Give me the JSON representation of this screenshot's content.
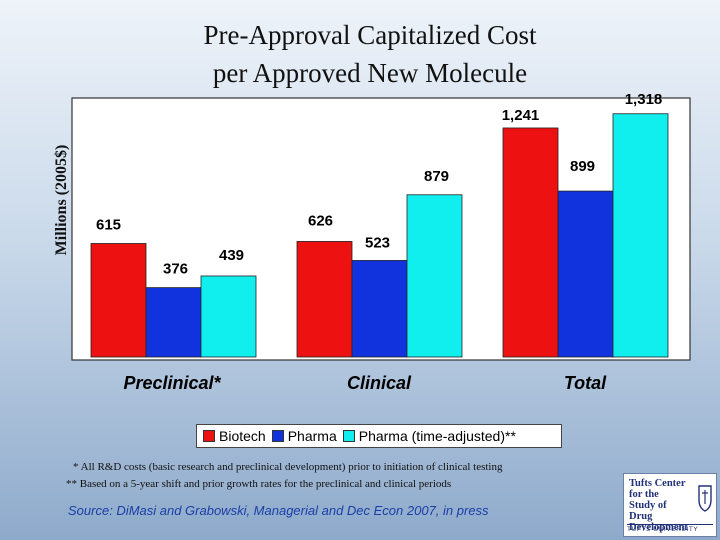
{
  "chart_data": {
    "type": "bar",
    "title": [
      "Pre-Approval Capitalized Cost",
      "per Approved New Molecule"
    ],
    "ylabel": "Millions (2005$)",
    "ylim": [
      0,
      1400
    ],
    "grid": false,
    "legend_placement": "bottom",
    "categories": [
      "Preclinical*",
      "Clinical",
      "Total"
    ],
    "series": [
      {
        "name": "Biotech",
        "color": "#ee1111",
        "values": [
          615,
          626,
          1241
        ],
        "labels": [
          "615",
          "626",
          "1,241"
        ]
      },
      {
        "name": "Pharma",
        "color": "#1133dd",
        "values": [
          376,
          523,
          899
        ],
        "labels": [
          "376",
          "523",
          "899"
        ]
      },
      {
        "name": "Pharma (time-adjusted)**",
        "color": "#11eeee",
        "values": [
          439,
          879,
          1318
        ],
        "labels": [
          "439",
          "879",
          "1,318"
        ]
      }
    ]
  },
  "footnotes": [
    "* All R&D costs (basic research and preclinical development) prior to initiation of clinical testing",
    "** Based on a 5-year shift and prior growth rates for the preclinical and clinical periods"
  ],
  "source": "Source: DiMasi and Grabowski, Managerial and Dec Econ 2007, in press",
  "logo": {
    "name": "Tufts Center\nfor the\nStudy of\nDrug Development",
    "university": "TUFTS UNIVERSITY"
  }
}
